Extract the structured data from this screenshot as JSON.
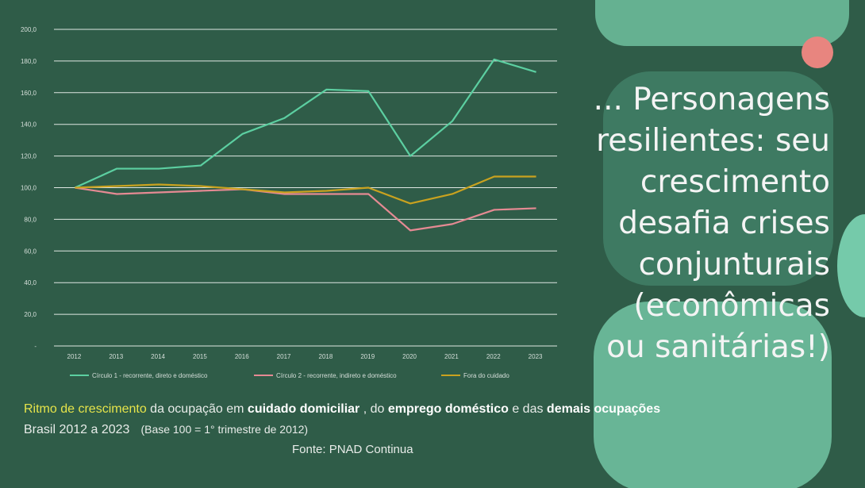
{
  "headline": {
    "lines": [
      "... Personagens",
      "resilientes: seu",
      "crescimento",
      "desafia crises",
      "conjunturais",
      "(econômicas",
      "ou sanitárias!)"
    ]
  },
  "caption": {
    "part1": "Ritmo de crescimento",
    "part2": " da ocupação em ",
    "part3": "cuidado domiciliar",
    "part4": " , do ",
    "part5": "emprego doméstico",
    "part6": " e das ",
    "part7": "demais ocupações",
    "line2": "Brasil 2012 a 2023",
    "base_note": "(Base 100 = 1° trimestre de 2012)",
    "source": "Fonte: PNAD Continua"
  },
  "colors": {
    "series1": "#5ccfa1",
    "series2": "#e58a93",
    "series3": "#c9a21f",
    "background": "#2f5c48",
    "highlight": "#e6e44a",
    "dot": "#e8857f"
  },
  "chart_data": {
    "type": "line",
    "title": "",
    "xlabel": "",
    "ylabel": "",
    "ylim": [
      0,
      200
    ],
    "y_ticks": [
      "-",
      "20,0",
      "40,0",
      "60,0",
      "80,0",
      "100,0",
      "120,0",
      "140,0",
      "160,0",
      "180,0",
      "200,0"
    ],
    "categories": [
      "2012",
      "2013",
      "2014",
      "2015",
      "2016",
      "2017",
      "2018",
      "2019",
      "2020",
      "2021",
      "2022",
      "2023"
    ],
    "grid": true,
    "legend_position": "bottom",
    "series": [
      {
        "name": "Círculo 1 - recorrente, direto e doméstico",
        "values": [
          100,
          112,
          112,
          114,
          134,
          144,
          162,
          161,
          120,
          142,
          181,
          173
        ]
      },
      {
        "name": "Círculo 2 - recorrente, indireto e doméstico",
        "values": [
          100,
          96,
          97,
          98,
          99,
          96,
          96,
          96,
          73,
          77,
          86,
          87
        ]
      },
      {
        "name": "Fora do cuidado",
        "values": [
          100,
          101,
          102,
          101,
          99,
          97,
          98,
          100,
          90,
          96,
          107,
          107
        ]
      }
    ]
  }
}
